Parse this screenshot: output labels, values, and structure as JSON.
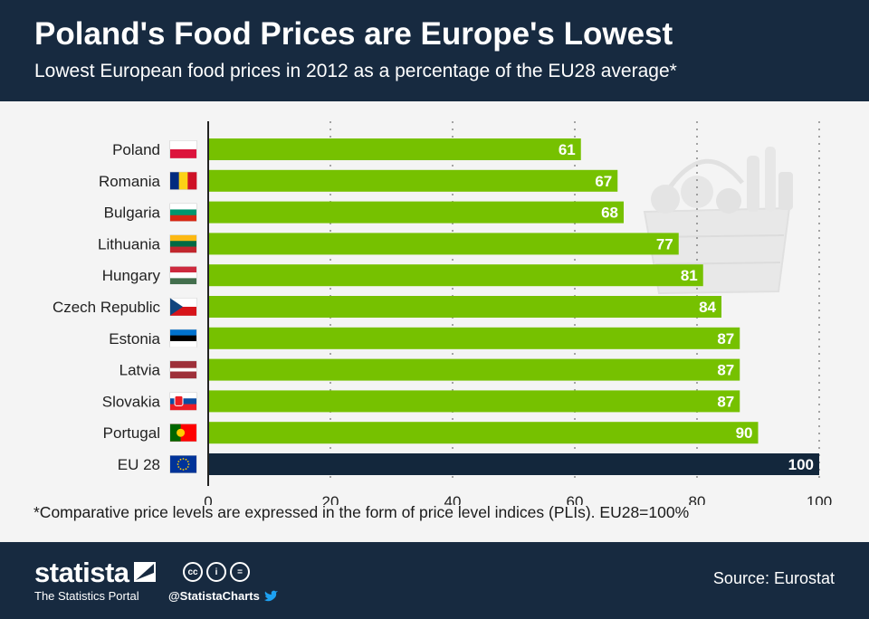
{
  "header": {
    "title": "Poland's Food Prices are Europe's Lowest",
    "subtitle": "Lowest European food prices in 2012 as a percentage of the EU28 average*"
  },
  "chart_data": {
    "type": "bar",
    "orientation": "horizontal",
    "categories": [
      "Poland",
      "Romania",
      "Bulgaria",
      "Lithuania",
      "Hungary",
      "Czech Republic",
      "Estonia",
      "Latvia",
      "Slovakia",
      "Portugal",
      "EU 28"
    ],
    "values": [
      61,
      67,
      68,
      77,
      81,
      84,
      87,
      87,
      87,
      90,
      100
    ],
    "title": "Lowest European food prices in 2012 as a percentage of the EU28 average*",
    "xlabel": "",
    "ylabel": "",
    "xlim": [
      0,
      100
    ],
    "xticks": [
      0,
      20,
      40,
      60,
      80,
      100
    ],
    "grid": true,
    "bar_color": "#76c100",
    "highlight_color": "#13273c",
    "highlight_category": "EU 28"
  },
  "footnote": "*Comparative price levels are expressed in the form of price level indices (PLIs). EU28=100%",
  "footer": {
    "brand": "statista",
    "tagline": "The Statistics Portal",
    "license_icons": [
      "cc",
      "i",
      "="
    ],
    "handle": "@StatistaCharts",
    "source": "Source: Eurostat"
  },
  "icons": {
    "flags": [
      "flag-poland-icon",
      "flag-romania-icon",
      "flag-bulgaria-icon",
      "flag-lithuania-icon",
      "flag-hungary-icon",
      "flag-czech-icon",
      "flag-estonia-icon",
      "flag-latvia-icon",
      "flag-slovakia-icon",
      "flag-portugal-icon",
      "flag-eu-icon"
    ],
    "illustration": "grocery-basket-icon",
    "twitter": "twitter-bird-icon"
  }
}
